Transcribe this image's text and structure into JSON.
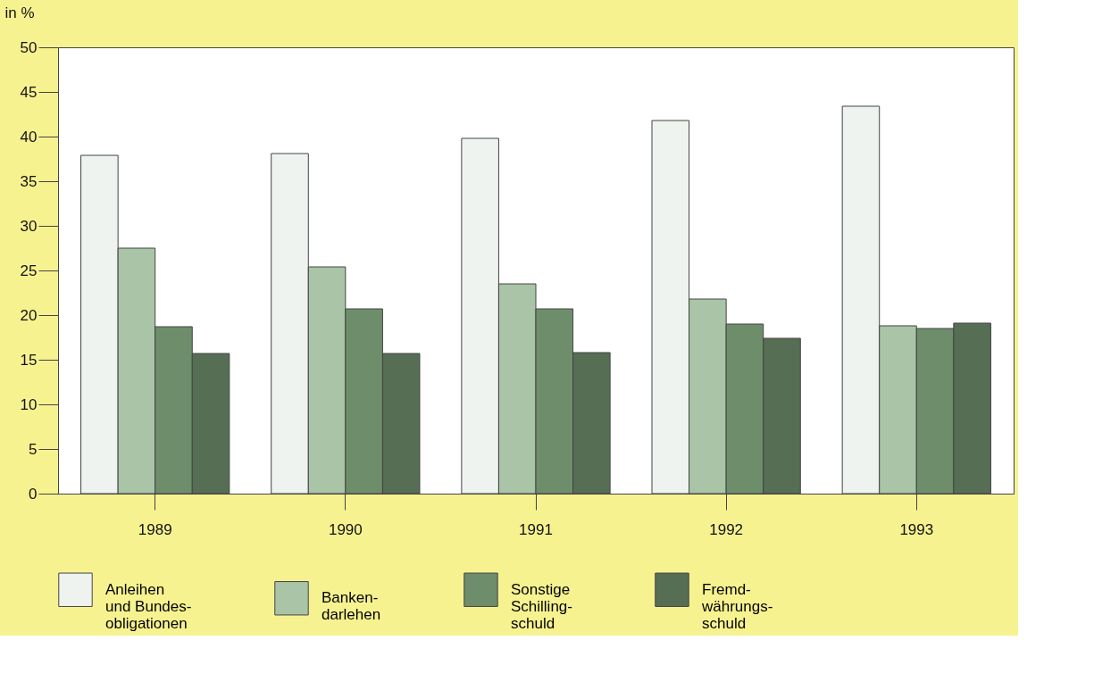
{
  "chart_data": {
    "type": "bar",
    "ylabel": "in %",
    "categories": [
      "1989",
      "1990",
      "1991",
      "1992",
      "1993"
    ],
    "series": [
      {
        "name": "Anleihen\nund Bundes-\nobligationen",
        "color": "#eef3ef",
        "values": [
          37.9,
          38.1,
          39.8,
          41.8,
          43.4
        ]
      },
      {
        "name": "Banken-\ndarlehen",
        "color": "#a9c4a6",
        "values": [
          27.5,
          25.4,
          23.5,
          21.8,
          18.8
        ]
      },
      {
        "name": "Sonstige\nSchilling-\nschuld",
        "color": "#6e8e6b",
        "values": [
          18.7,
          20.7,
          20.7,
          19.0,
          18.5
        ]
      },
      {
        "name": "Fremd-\nwährungs-\nschuld",
        "color": "#566e54",
        "values": [
          15.7,
          15.7,
          15.8,
          17.4,
          19.1
        ]
      }
    ],
    "ylim": [
      0,
      50
    ],
    "yticks": [
      0,
      5,
      10,
      15,
      20,
      25,
      30,
      35,
      40,
      45,
      50
    ],
    "grid": false,
    "legend": "bottom"
  }
}
